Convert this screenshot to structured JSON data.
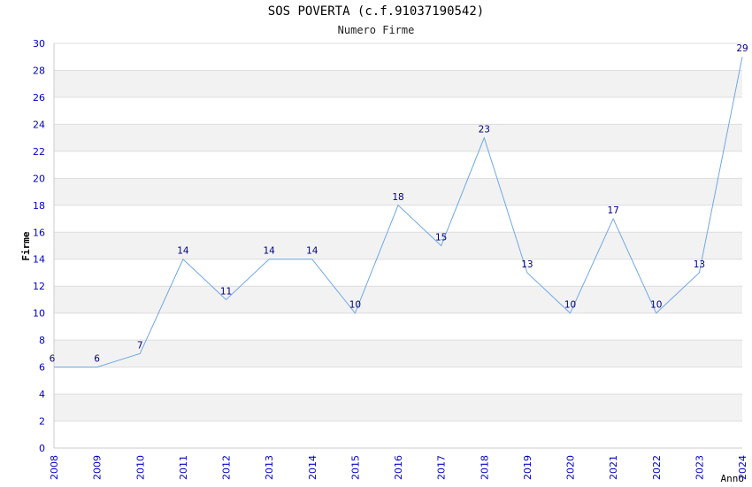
{
  "chart_data": {
    "type": "line",
    "title": "SOS POVERTA (c.f.91037190542)",
    "subtitle": "Numero Firme",
    "xlabel": "Anno",
    "ylabel": "Firme",
    "x": [
      "2008",
      "2009",
      "2010",
      "2011",
      "2012",
      "2013",
      "2014",
      "2015",
      "2016",
      "2017",
      "2018",
      "2019",
      "2020",
      "2021",
      "2022",
      "2023",
      "2024"
    ],
    "series": [
      {
        "values": [
          6,
          6,
          7,
          14,
          11,
          14,
          14,
          10,
          18,
          15,
          23,
          13,
          10,
          17,
          10,
          13,
          29
        ]
      }
    ],
    "ylim": [
      0,
      30
    ],
    "ytick_step": 2,
    "grid": true,
    "line_color": "#6fa8e6",
    "tick_color": "#0000cc",
    "label_color": "#000080",
    "band_color": "#f2f2f2"
  }
}
